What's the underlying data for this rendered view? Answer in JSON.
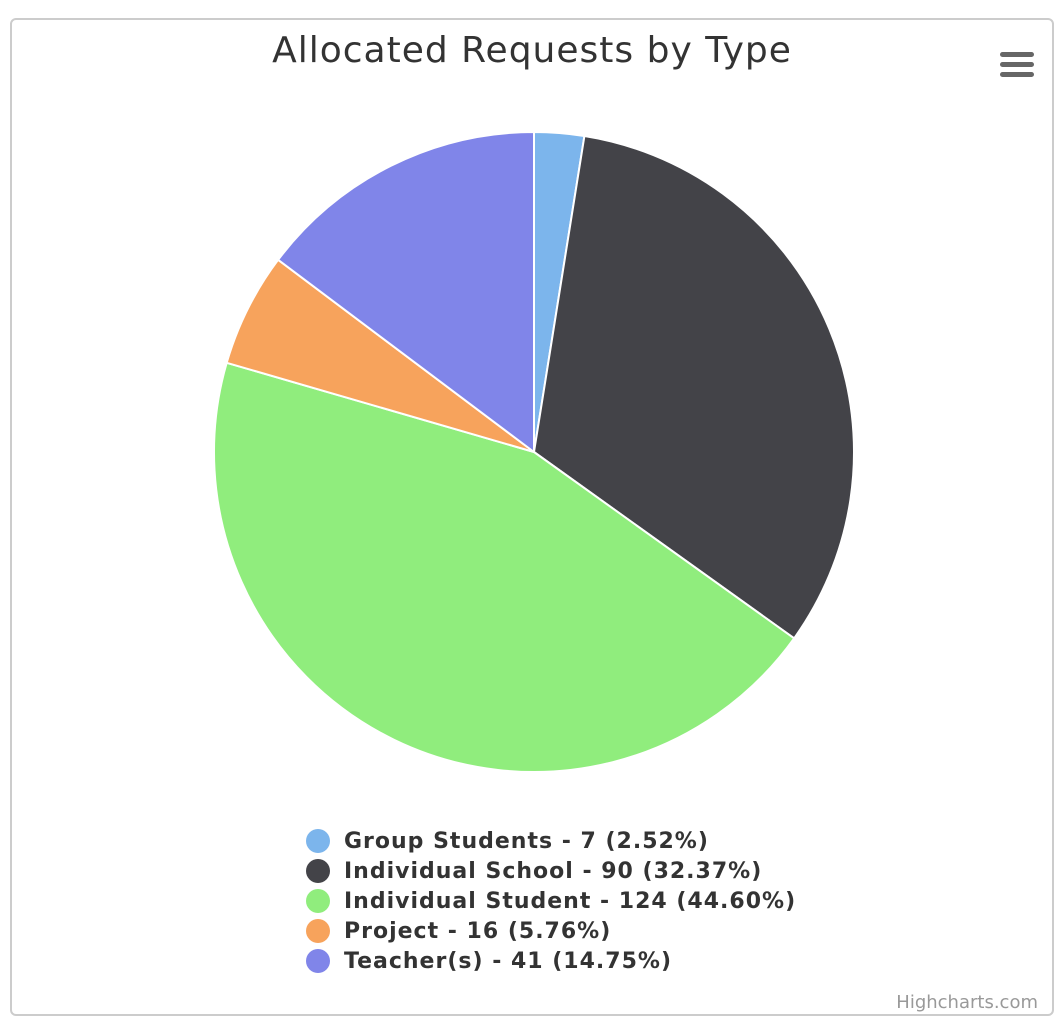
{
  "chart_data": {
    "type": "pie",
    "title": "Allocated Requests by Type",
    "credits": "Highcharts.com",
    "slices": [
      {
        "name": "Group Students",
        "value": 7,
        "percent": 2.52,
        "legend": "Group Students - 7 (2.52%)",
        "color": "#7cb5ec"
      },
      {
        "name": "Individual School",
        "value": 90,
        "percent": 32.37,
        "legend": "Individual School - 90 (32.37%)",
        "color": "#434348"
      },
      {
        "name": "Individual Student",
        "value": 124,
        "percent": 44.6,
        "legend": "Individual Student - 124 (44.60%)",
        "color": "#90ed7d"
      },
      {
        "name": "Project",
        "value": 16,
        "percent": 5.76,
        "legend": "Project - 16 (5.76%)",
        "color": "#f7a35c"
      },
      {
        "name": "Teacher(s)",
        "value": 41,
        "percent": 14.75,
        "legend": "Teacher(s) - 41 (14.75%)",
        "color": "#8085e9"
      }
    ],
    "legend_position": "bottom-center"
  },
  "menu": {
    "icon": "hamburger-menu-icon"
  }
}
